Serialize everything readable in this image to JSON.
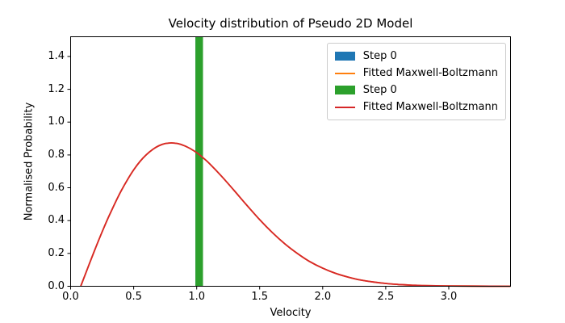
{
  "figure": {
    "title": "Velocity distribution of Pseudo 2D Model",
    "xlabel": "Velocity",
    "ylabel": "Normalised Probability",
    "background_color": "#ffffff",
    "spine_color": "#000000"
  },
  "chart_data": {
    "type": "bar",
    "subtype": "histogram bars with fitted line curves overlaid",
    "title": "Velocity distribution of Pseudo 2D Model",
    "xlabel": "Velocity",
    "ylabel": "Normalised Probability",
    "xlim": [
      0.0,
      3.49
    ],
    "ylim": [
      0.0,
      1.52
    ],
    "x_ticks": [
      0.0,
      0.5,
      1.0,
      1.5,
      2.0,
      2.5,
      3.0
    ],
    "x_tick_labels": [
      "0.0",
      "0.5",
      "1.0",
      "1.5",
      "2.0",
      "2.5",
      "3.0"
    ],
    "y_ticks": [
      0.0,
      0.2,
      0.4,
      0.6,
      0.8,
      1.0,
      1.2,
      1.4
    ],
    "y_tick_labels": [
      "0.0",
      "0.2",
      "0.4",
      "0.6",
      "0.8",
      "1.0",
      "1.2",
      "1.4"
    ],
    "grid": false,
    "legend_position": "upper right",
    "series": [
      {
        "name": "Step 0",
        "type": "bar",
        "color": "#1f77b4",
        "occluded": true,
        "bars": [
          {
            "x_left": 0.99,
            "x_right": 1.05,
            "height": 1.52,
            "clipped_at_top": true
          }
        ]
      },
      {
        "name": "Fitted Maxwell-Boltzmann",
        "type": "line",
        "color": "#ff7f0e",
        "occluded": true,
        "x": [
          0.08,
          0.15,
          0.2,
          0.25,
          0.3,
          0.35,
          0.4,
          0.45,
          0.5,
          0.55,
          0.6,
          0.65,
          0.7,
          0.75,
          0.8,
          0.85,
          0.9,
          0.95,
          1.0,
          1.05,
          1.1,
          1.2,
          1.3,
          1.4,
          1.5,
          1.6,
          1.7,
          1.8,
          1.9,
          2.0,
          2.1,
          2.2,
          2.3,
          2.4,
          2.5,
          2.6,
          2.7,
          2.8,
          2.9,
          3.0,
          3.2,
          3.49
        ],
        "y": [
          0.0,
          0.139,
          0.237,
          0.331,
          0.42,
          0.503,
          0.58,
          0.648,
          0.709,
          0.76,
          0.801,
          0.833,
          0.856,
          0.869,
          0.873,
          0.869,
          0.857,
          0.838,
          0.814,
          0.783,
          0.748,
          0.668,
          0.581,
          0.492,
          0.406,
          0.327,
          0.258,
          0.199,
          0.149,
          0.11,
          0.079,
          0.056,
          0.038,
          0.026,
          0.017,
          0.011,
          0.007,
          0.004,
          0.003,
          0.002,
          0.001,
          0.0
        ]
      },
      {
        "name": "Step 0",
        "type": "bar",
        "color": "#2ca02c",
        "occluded": false,
        "bars": [
          {
            "x_left": 0.99,
            "x_right": 1.05,
            "height": 1.52,
            "clipped_at_top": true
          }
        ]
      },
      {
        "name": "Fitted Maxwell-Boltzmann",
        "type": "line",
        "color": "#d62728",
        "occluded": false,
        "x": [
          0.08,
          0.15,
          0.2,
          0.25,
          0.3,
          0.35,
          0.4,
          0.45,
          0.5,
          0.55,
          0.6,
          0.65,
          0.7,
          0.75,
          0.8,
          0.85,
          0.9,
          0.95,
          1.0,
          1.05,
          1.1,
          1.2,
          1.3,
          1.4,
          1.5,
          1.6,
          1.7,
          1.8,
          1.9,
          2.0,
          2.1,
          2.2,
          2.3,
          2.4,
          2.5,
          2.6,
          2.7,
          2.8,
          2.9,
          3.0,
          3.2,
          3.49
        ],
        "y": [
          0.0,
          0.139,
          0.237,
          0.331,
          0.42,
          0.503,
          0.58,
          0.648,
          0.709,
          0.76,
          0.801,
          0.833,
          0.856,
          0.869,
          0.873,
          0.869,
          0.857,
          0.838,
          0.814,
          0.783,
          0.748,
          0.668,
          0.581,
          0.492,
          0.406,
          0.327,
          0.258,
          0.199,
          0.149,
          0.11,
          0.079,
          0.056,
          0.038,
          0.026,
          0.017,
          0.011,
          0.007,
          0.004,
          0.003,
          0.002,
          0.001,
          0.0
        ]
      }
    ],
    "legend": {
      "entries": [
        {
          "label": "Step 0",
          "swatch": "patch",
          "color": "#1f77b4"
        },
        {
          "label": "Fitted Maxwell-Boltzmann",
          "swatch": "line",
          "color": "#ff7f0e"
        },
        {
          "label": "Step 0",
          "swatch": "patch",
          "color": "#2ca02c"
        },
        {
          "label": "Fitted Maxwell-Boltzmann",
          "swatch": "line",
          "color": "#d62728"
        }
      ]
    }
  }
}
